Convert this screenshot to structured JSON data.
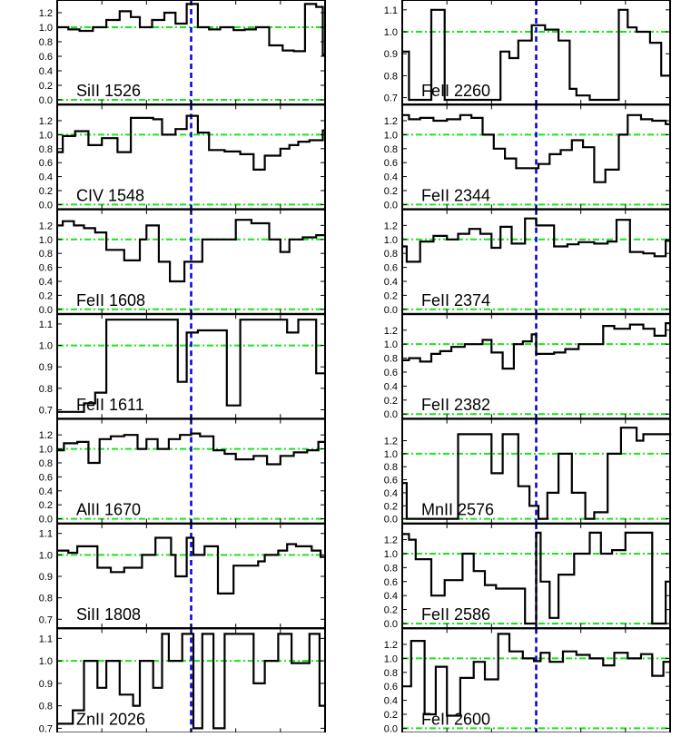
{
  "colors": {
    "frame": "#000000",
    "step": "#000000",
    "continuum": "#19e619",
    "zero_velocity": "#0000e0"
  },
  "chart_data": {
    "type": "line",
    "style": "step",
    "layout": "2 columns x 7 stacked panels, shared velocity axis",
    "x_ticks": [
      "-600",
      "-400",
      "-200",
      "0",
      "200",
      "400",
      "600"
    ],
    "xlim": [
      -600,
      600
    ],
    "reference_lines": {
      "vertical_x": 0,
      "continuum_y": 1.0,
      "zero_y": 0.0
    },
    "columns": [
      {
        "panels": [
          {
            "label": "SiII 1526",
            "ylim": [
              0,
              1.3
            ],
            "y_ticks": [
              "0.0",
              "0.2",
              "0.4",
              "0.6",
              "0.8",
              "1.0",
              "1.2"
            ],
            "x": [
              -600,
              -550,
              -500,
              -440,
              -380,
              -320,
              -270,
              -230,
              -175,
              -120,
              -70,
              -20,
              30,
              80,
              130,
              190,
              240,
              290,
              350,
              410,
              460,
              510,
              560,
              590,
              600
            ],
            "y": [
              1.0,
              0.97,
              0.95,
              1.0,
              1.1,
              1.22,
              1.14,
              1.0,
              1.1,
              1.2,
              1.05,
              1.32,
              1.0,
              0.97,
              1.0,
              0.96,
              0.97,
              1.0,
              0.75,
              0.68,
              0.67,
              1.32,
              1.28,
              0.62,
              0.62
            ]
          },
          {
            "label": "CIV 1548",
            "ylim": [
              0,
              1.35
            ],
            "y_ticks": [
              "0.0",
              "0.2",
              "0.4",
              "0.6",
              "0.8",
              "1.0",
              "1.2"
            ],
            "x": [
              -600,
              -575,
              -520,
              -460,
              -400,
              -330,
              -270,
              -220,
              -170,
              -130,
              -70,
              -20,
              30,
              80,
              150,
              220,
              280,
              330,
              400,
              440,
              480,
              530,
              590,
              600
            ],
            "y": [
              0.75,
              0.98,
              1.05,
              0.85,
              0.95,
              0.75,
              1.24,
              1.24,
              1.22,
              1.0,
              1.08,
              1.27,
              1.03,
              0.78,
              0.76,
              0.72,
              0.5,
              0.7,
              0.8,
              0.85,
              0.9,
              0.92,
              1.06,
              1.06
            ]
          },
          {
            "label": "FeII 1608",
            "ylim": [
              0,
              1.35
            ],
            "y_ticks": [
              "0.0",
              "0.2",
              "0.4",
              "0.6",
              "0.8",
              "1.0",
              "1.2"
            ],
            "x": [
              -600,
              -575,
              -525,
              -480,
              -430,
              -380,
              -300,
              -230,
              -200,
              -145,
              -95,
              -30,
              50,
              200,
              270,
              350,
              400,
              440,
              500,
              560,
              600
            ],
            "y": [
              1.2,
              1.26,
              1.2,
              1.16,
              1.1,
              0.85,
              0.7,
              1.0,
              1.2,
              0.68,
              0.4,
              0.68,
              1.0,
              1.28,
              1.23,
              1.0,
              0.82,
              1.0,
              1.03,
              1.06,
              1.06
            ]
          },
          {
            "label": "FeII 1611",
            "ylim": [
              0.68,
              1.12
            ],
            "y_ticks": [
              "0.7",
              "0.8",
              "0.9",
              "1.0",
              "1.1"
            ],
            "x": [
              -600,
              -545,
              -520,
              -480,
              -450,
              -430,
              -380,
              -320,
              -250,
              -180,
              -120,
              -60,
              -20,
              30,
              90,
              160,
              220,
              290,
              370,
              430,
              480,
              560,
              600
            ],
            "y": [
              0.69,
              0.69,
              0.69,
              0.73,
              0.73,
              0.78,
              1.12,
              1.12,
              1.12,
              1.12,
              1.12,
              0.83,
              1.06,
              1.07,
              1.07,
              0.72,
              1.12,
              1.12,
              1.12,
              1.06,
              1.12,
              0.87,
              0.87
            ]
          },
          {
            "label": "AlII 1670",
            "ylim": [
              0,
              1.35
            ],
            "y_ticks": [
              "0.0",
              "0.2",
              "0.4",
              "0.6",
              "0.8",
              "1.0",
              "1.2"
            ],
            "x": [
              -600,
              -570,
              -510,
              -460,
              -410,
              -360,
              -300,
              -240,
              -200,
              -150,
              -100,
              -50,
              0,
              40,
              100,
              150,
              200,
              280,
              340,
              400,
              460,
              520,
              570,
              600
            ],
            "y": [
              0.98,
              1.08,
              1.1,
              0.8,
              1.14,
              1.18,
              1.2,
              1.0,
              1.14,
              1.0,
              1.14,
              1.2,
              1.22,
              1.18,
              0.98,
              0.93,
              0.85,
              0.9,
              0.78,
              0.9,
              0.95,
              0.98,
              1.1,
              1.1
            ]
          },
          {
            "label": "SiII 1808",
            "ylim": [
              0.68,
              1.12
            ],
            "y_ticks": [
              "0.7",
              "0.8",
              "0.9",
              "1.0",
              "1.1"
            ],
            "x": [
              -600,
              -550,
              -510,
              -420,
              -360,
              -300,
              -220,
              -160,
              -140,
              -90,
              -70,
              -20,
              10,
              60,
              120,
              190,
              260,
              300,
              330,
              390,
              430,
              470,
              540,
              580,
              600
            ],
            "y": [
              1.02,
              1.01,
              1.04,
              0.94,
              0.92,
              0.94,
              1.0,
              1.08,
              1.08,
              1.0,
              0.9,
              1.08,
              1.0,
              1.04,
              0.82,
              0.95,
              0.95,
              0.97,
              1.0,
              1.02,
              1.05,
              1.04,
              1.02,
              0.99,
              0.99
            ]
          },
          {
            "label": "ZnII 2026",
            "ylim": [
              0.7,
              1.12
            ],
            "y_ticks": [
              "0.7",
              "0.8",
              "0.9",
              "1.0",
              "1.1"
            ],
            "x": [
              -600,
              -560,
              -530,
              -480,
              -420,
              -380,
              -320,
              -260,
              -230,
              -170,
              -130,
              -100,
              -40,
              10,
              50,
              100,
              150,
              230,
              280,
              330,
              390,
              450,
              530,
              575,
              600
            ],
            "y": [
              0.72,
              0.72,
              0.78,
              1.0,
              0.88,
              1.0,
              0.85,
              0.8,
              1.0,
              0.88,
              1.12,
              1.0,
              1.12,
              0.7,
              1.12,
              0.7,
              1.12,
              1.12,
              0.9,
              1.0,
              1.12,
              0.99,
              1.12,
              0.8,
              0.8
            ]
          }
        ]
      },
      {
        "panels": [
          {
            "label": "FeII 2260",
            "ylim": [
              0.69,
              1.12
            ],
            "y_ticks": [
              "0.7",
              "0.8",
              "0.9",
              "1.0",
              "1.1"
            ],
            "x": [
              -600,
              -570,
              -530,
              -470,
              -410,
              -350,
              -290,
              -240,
              -200,
              -160,
              -120,
              -80,
              -20,
              40,
              100,
              150,
              180,
              240,
              290,
              370,
              410,
              450,
              510,
              560,
              590,
              600
            ],
            "y": [
              0.91,
              0.69,
              0.69,
              1.1,
              0.69,
              0.69,
              0.69,
              0.69,
              0.69,
              0.91,
              0.88,
              0.96,
              1.03,
              1.01,
              0.96,
              0.74,
              0.71,
              0.69,
              0.69,
              1.1,
              1.02,
              1.0,
              0.95,
              0.8,
              0.8,
              0.8
            ]
          },
          {
            "label": "FeII 2344",
            "ylim": [
              0,
              1.35
            ],
            "y_ticks": [
              "0.0",
              "0.2",
              "0.4",
              "0.6",
              "0.8",
              "1.0",
              "1.2"
            ],
            "x": [
              -600,
              -570,
              -520,
              -460,
              -400,
              -340,
              -290,
              -240,
              -190,
              -140,
              -90,
              -40,
              10,
              60,
              110,
              160,
              210,
              260,
              310,
              370,
              410,
              470,
              520,
              580,
              600
            ],
            "y": [
              1.28,
              1.22,
              1.24,
              1.2,
              1.22,
              1.28,
              1.24,
              1.0,
              0.8,
              0.66,
              0.52,
              0.52,
              0.58,
              0.72,
              0.78,
              0.92,
              0.82,
              0.32,
              0.5,
              1.0,
              1.28,
              1.22,
              1.2,
              1.15,
              1.15
            ]
          },
          {
            "label": "FeII 2374",
            "ylim": [
              0,
              1.35
            ],
            "y_ticks": [
              "0.0",
              "0.2",
              "0.4",
              "0.6",
              "0.8",
              "1.0",
              "1.2"
            ],
            "x": [
              -600,
              -580,
              -520,
              -460,
              -400,
              -350,
              -300,
              -250,
              -200,
              -160,
              -110,
              -50,
              0,
              80,
              140,
              190,
              260,
              320,
              360,
              420,
              480,
              530,
              580,
              600
            ],
            "y": [
              0.9,
              0.68,
              0.97,
              1.05,
              1.0,
              1.08,
              1.15,
              1.08,
              0.88,
              1.18,
              0.94,
              1.3,
              1.2,
              0.9,
              0.93,
              0.96,
              0.94,
              0.97,
              1.28,
              0.82,
              0.8,
              0.76,
              0.98,
              0.98
            ]
          },
          {
            "label": "FeII 2382",
            "ylim": [
              0,
              1.35
            ],
            "y_ticks": [
              "0.0",
              "0.2",
              "0.4",
              "0.6",
              "0.8",
              "1.0",
              "1.2"
            ],
            "x": [
              -600,
              -570,
              -520,
              -470,
              -430,
              -380,
              -320,
              -240,
              -200,
              -150,
              -100,
              -60,
              -20,
              0,
              80,
              130,
              190,
              270,
              300,
              350,
              420,
              480,
              530,
              580,
              600
            ],
            "y": [
              0.77,
              0.8,
              0.75,
              0.86,
              0.9,
              0.96,
              1.0,
              1.06,
              0.88,
              0.65,
              1.0,
              1.04,
              1.14,
              0.86,
              0.88,
              0.93,
              1.0,
              1.0,
              1.26,
              1.22,
              1.28,
              1.22,
              1.12,
              1.3,
              1.3
            ]
          },
          {
            "label": "MnII 2576",
            "ylim": [
              0,
              1.45
            ],
            "y_ticks": [
              "0.0",
              "0.2",
              "0.4",
              "0.6",
              "0.8",
              "1.0",
              "1.2"
            ],
            "x": [
              -600,
              -580,
              -530,
              -470,
              -420,
              -350,
              -300,
              -240,
              -200,
              -150,
              -80,
              -30,
              10,
              50,
              100,
              160,
              220,
              260,
              320,
              380,
              450,
              480,
              530,
              580,
              600
            ],
            "y": [
              0.55,
              0.0,
              0.0,
              0.0,
              0.0,
              1.3,
              1.3,
              1.3,
              0.7,
              1.3,
              0.5,
              0.2,
              0.0,
              0.4,
              1.0,
              0.4,
              0.0,
              0.1,
              1.0,
              1.4,
              1.2,
              1.3,
              1.3,
              1.3,
              1.32
            ]
          },
          {
            "label": "FeII 2586",
            "ylim": [
              0,
              1.35
            ],
            "y_ticks": [
              "0.0",
              "0.2",
              "0.4",
              "0.6",
              "0.8",
              "1.0",
              "1.2"
            ],
            "x": [
              -600,
              -570,
              -540,
              -470,
              -410,
              -330,
              -280,
              -230,
              -180,
              -120,
              -50,
              0,
              20,
              60,
              100,
              170,
              240,
              290,
              340,
              400,
              440,
              480,
              520,
              580,
              600
            ],
            "y": [
              1.28,
              1.2,
              0.92,
              0.4,
              0.62,
              1.0,
              0.75,
              0.55,
              0.5,
              0.5,
              0.0,
              1.3,
              0.6,
              0.08,
              0.7,
              1.0,
              1.3,
              1.0,
              1.05,
              1.3,
              1.3,
              1.3,
              0.0,
              0.6,
              0.6
            ]
          },
          {
            "label": "FeII 2600",
            "ylim": [
              0,
              1.35
            ],
            "y_ticks": [
              "0.0",
              "0.2",
              "0.4",
              "0.6",
              "0.8",
              "1.0",
              "1.2"
            ],
            "x": [
              -600,
              -560,
              -500,
              -450,
              -400,
              -340,
              -280,
              -230,
              -170,
              -120,
              -60,
              -10,
              20,
              60,
              120,
              180,
              240,
              300,
              350,
              410,
              470,
              520,
              570,
              600
            ],
            "y": [
              0.6,
              1.25,
              0.2,
              0.88,
              0.18,
              0.72,
              0.95,
              0.7,
              1.35,
              1.1,
              1.0,
              0.96,
              1.08,
              0.95,
              1.1,
              1.05,
              1.0,
              0.9,
              1.08,
              1.0,
              1.06,
              0.75,
              0.95,
              0.95
            ]
          }
        ]
      }
    ]
  }
}
